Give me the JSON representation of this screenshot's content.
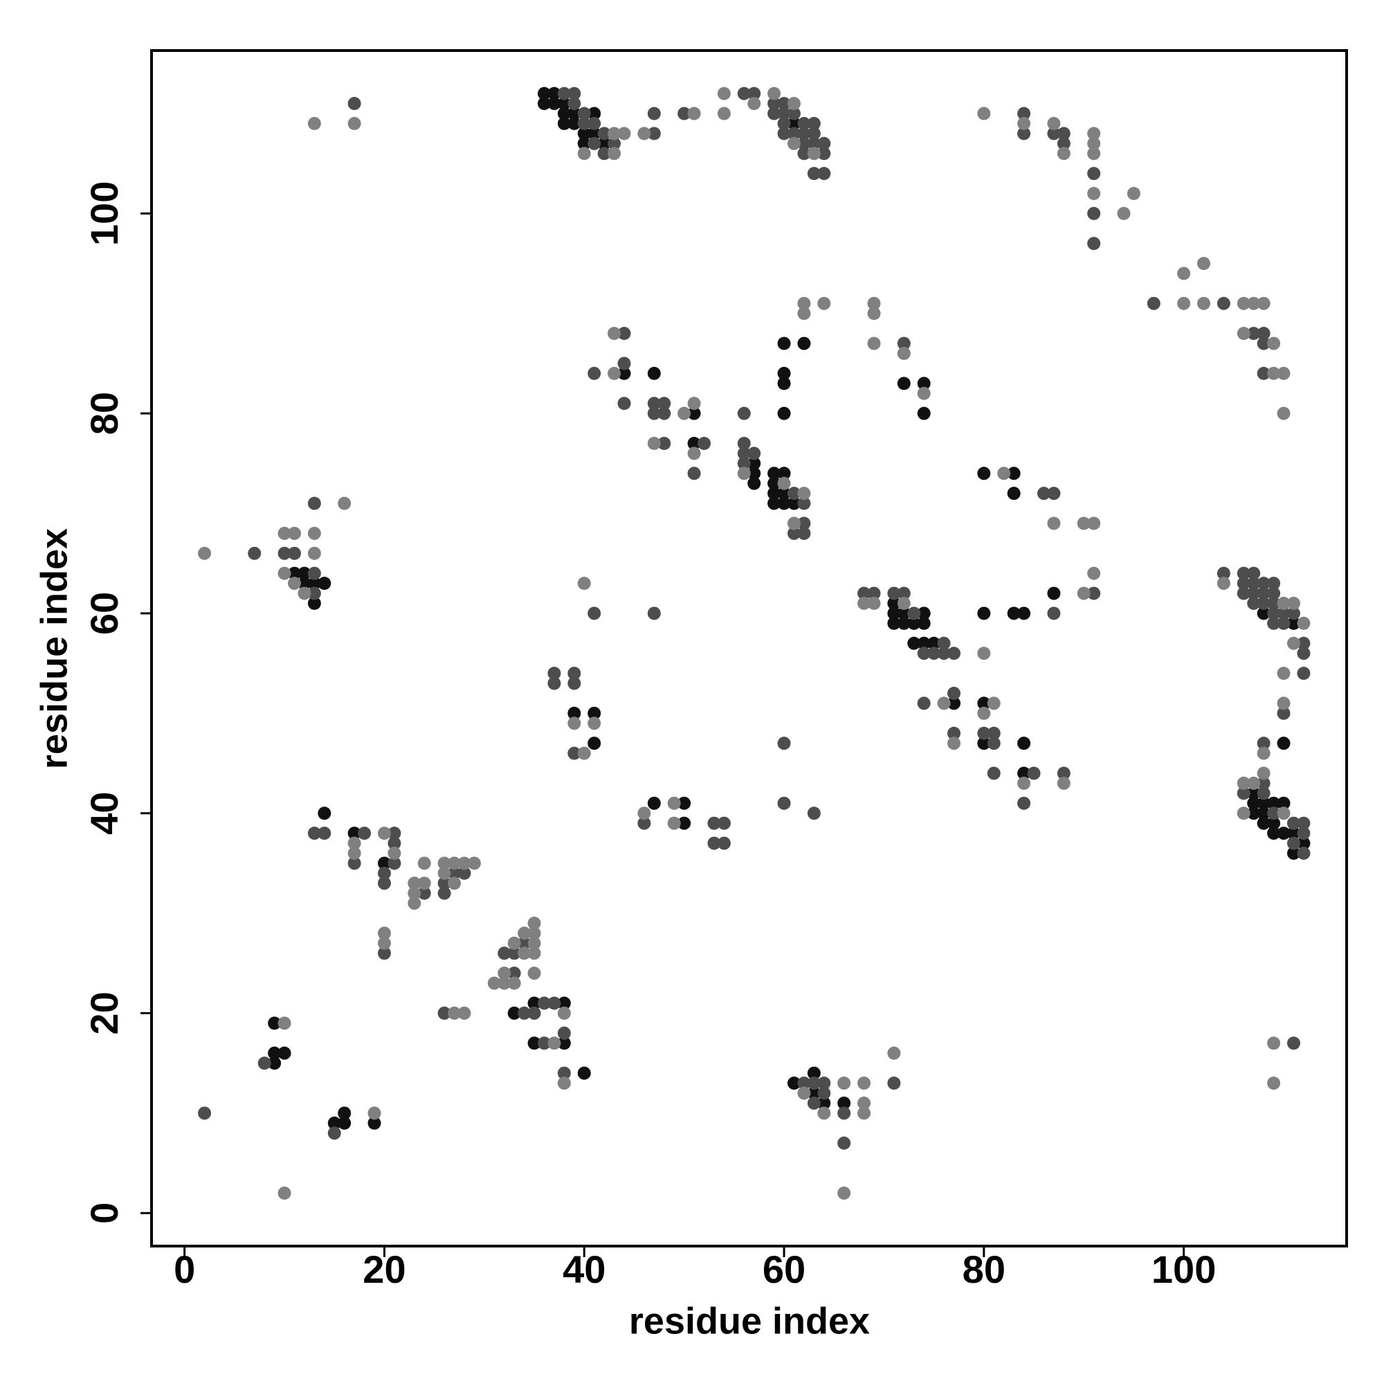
{
  "chart_data": {
    "type": "scatter",
    "xlabel": "residue index",
    "ylabel": "residue index",
    "xlim": [
      -3.3,
      116.3
    ],
    "ylim": [
      -3.3,
      116.3
    ],
    "xticks": [
      0,
      20,
      40,
      60,
      80,
      100
    ],
    "yticks": [
      0,
      20,
      40,
      60,
      80,
      100
    ],
    "grid": false,
    "series": [
      {
        "color": "#111111",
        "x": [
          36,
          37,
          36,
          37,
          38,
          38,
          39,
          41,
          38,
          39,
          40,
          41,
          40,
          42,
          61,
          44,
          47,
          51,
          51,
          57,
          57,
          57,
          59,
          60,
          59,
          59,
          60,
          59,
          60,
          61,
          60,
          62,
          60,
          60,
          60,
          72,
          74,
          74,
          80,
          83,
          83,
          11,
          12,
          12,
          13,
          14,
          13,
          71,
          71,
          72,
          74,
          71,
          72,
          73,
          74,
          73,
          74,
          75,
          80,
          83,
          84,
          87,
          77,
          80,
          80,
          84,
          84,
          108,
          111,
          110,
          107,
          107,
          108,
          109,
          110,
          107,
          108,
          108,
          109,
          109,
          110,
          111,
          112,
          111,
          39,
          41,
          41,
          47,
          50,
          50,
          14,
          17,
          20,
          33,
          35,
          38,
          35,
          38,
          40,
          9,
          9,
          10,
          9,
          15,
          16,
          16,
          19,
          61,
          63,
          63,
          64,
          66
        ],
        "values": [
          112,
          112,
          111,
          111,
          111,
          110,
          110,
          110,
          109,
          109,
          108,
          108,
          107,
          107,
          109,
          84,
          84,
          80,
          77,
          75,
          74,
          73,
          74,
          74,
          73,
          72,
          72,
          71,
          71,
          71,
          87,
          87,
          84,
          83,
          80,
          83,
          83,
          80,
          74,
          74,
          72,
          64,
          64,
          63,
          63,
          63,
          61,
          61,
          60,
          60,
          60,
          59,
          59,
          59,
          59,
          57,
          57,
          57,
          60,
          60,
          60,
          62,
          51,
          51,
          47,
          47,
          44,
          60,
          59,
          47,
          42,
          41,
          41,
          41,
          41,
          40,
          40,
          39,
          39,
          38,
          38,
          38,
          37,
          36,
          50,
          50,
          47,
          41,
          41,
          39,
          40,
          38,
          35,
          20,
          21,
          21,
          17,
          17,
          14,
          19,
          16,
          16,
          15,
          9,
          10,
          9,
          9,
          13,
          14,
          12,
          11,
          11
        ]
      },
      {
        "color": "#4d4d4d",
        "x": [
          38,
          39,
          39,
          40,
          40,
          41,
          42,
          41,
          43,
          42,
          17,
          47,
          47,
          50,
          56,
          57,
          59,
          60,
          59,
          60,
          61,
          60,
          62,
          63,
          60,
          61,
          62,
          63,
          62,
          63,
          64,
          62,
          64,
          63,
          64,
          84,
          84,
          87,
          88,
          88,
          91,
          91,
          91,
          97,
          104,
          107,
          108,
          108,
          108,
          41,
          44,
          44,
          44,
          47,
          48,
          47,
          48,
          48,
          52,
          51,
          56,
          56,
          56,
          57,
          56,
          61,
          62,
          62,
          61,
          62,
          72,
          86,
          87,
          91,
          7,
          13,
          10,
          11,
          13,
          13,
          41,
          47,
          68,
          69,
          71,
          72,
          73,
          76,
          74,
          75,
          76,
          77,
          87,
          74,
          77,
          77,
          80,
          81,
          81,
          81,
          85,
          84,
          88,
          104,
          106,
          107,
          108,
          109,
          106,
          107,
          106,
          107,
          108,
          109,
          107,
          108,
          109,
          109,
          110,
          111,
          109,
          110,
          112,
          112,
          112,
          110,
          108,
          108,
          106,
          108,
          109,
          111,
          112,
          112,
          111,
          112,
          37,
          39,
          37,
          39,
          39,
          60,
          60,
          63,
          46,
          53,
          54,
          53,
          54,
          13,
          14,
          18,
          17,
          21,
          21,
          21,
          20,
          20,
          24,
          27,
          28,
          26,
          26,
          20,
          34,
          32,
          33,
          33,
          26,
          34,
          36,
          37,
          35,
          38,
          36,
          38,
          8,
          2,
          15,
          62,
          63,
          64,
          64,
          63,
          66,
          71,
          66,
          111
        ],
        "values": [
          112,
          112,
          111,
          110,
          109,
          109,
          108,
          107,
          107,
          106,
          111,
          108,
          110,
          110,
          112,
          112,
          111,
          111,
          110,
          110,
          110,
          109,
          109,
          109,
          108,
          108,
          108,
          108,
          107,
          107,
          107,
          106,
          106,
          104,
          104,
          110,
          108,
          108,
          108,
          107,
          104,
          100,
          97,
          91,
          91,
          88,
          88,
          87,
          84,
          84,
          88,
          85,
          81,
          81,
          81,
          80,
          80,
          77,
          77,
          74,
          80,
          77,
          76,
          76,
          75,
          72,
          71,
          69,
          68,
          68,
          87,
          72,
          72,
          62,
          66,
          71,
          66,
          66,
          64,
          62,
          60,
          60,
          62,
          62,
          62,
          62,
          60,
          57,
          56,
          56,
          56,
          56,
          60,
          51,
          52,
          48,
          48,
          48,
          47,
          44,
          44,
          41,
          44,
          64,
          64,
          64,
          63,
          63,
          63,
          63,
          62,
          62,
          62,
          62,
          61,
          61,
          61,
          60,
          60,
          60,
          59,
          59,
          57,
          56,
          54,
          50,
          47,
          43,
          42,
          42,
          40,
          39,
          39,
          38,
          37,
          36,
          54,
          54,
          53,
          53,
          46,
          47,
          41,
          40,
          39,
          39,
          39,
          37,
          37,
          38,
          38,
          38,
          35,
          38,
          37,
          35,
          34,
          33,
          32,
          34,
          34,
          33,
          32,
          26,
          27,
          26,
          26,
          24,
          20,
          20,
          21,
          21,
          20,
          18,
          17,
          14,
          15,
          10,
          8,
          13,
          13,
          13,
          12,
          11,
          10,
          13,
          7,
          17
        ]
      },
      {
        "color": "#808080",
        "x": [
          13,
          17,
          43,
          44,
          40,
          43,
          46,
          51,
          54,
          54,
          57,
          59,
          61,
          61,
          63,
          80,
          84,
          87,
          88,
          91,
          91,
          91,
          91,
          94,
          95,
          100,
          100,
          102,
          102,
          106,
          107,
          108,
          106,
          109,
          109,
          110,
          110,
          43,
          43,
          47,
          50,
          51,
          51,
          56,
          60,
          62,
          61,
          62,
          62,
          64,
          69,
          69,
          69,
          72,
          74,
          82,
          87,
          90,
          91,
          91,
          90,
          2,
          10,
          11,
          13,
          16,
          13,
          10,
          11,
          12,
          40,
          68,
          69,
          72,
          80,
          76,
          77,
          81,
          80,
          84,
          88,
          104,
          110,
          111,
          112,
          111,
          110,
          110,
          108,
          108,
          106,
          107,
          106,
          110,
          39,
          41,
          40,
          46,
          49,
          49,
          17,
          17,
          20,
          21,
          24,
          23,
          24,
          23,
          23,
          26,
          27,
          28,
          29,
          26,
          27,
          20,
          20,
          35,
          34,
          35,
          33,
          35,
          34,
          35,
          32,
          35,
          31,
          32,
          33,
          27,
          28,
          38,
          37,
          38,
          10,
          19,
          10,
          62,
          64,
          66,
          68,
          68,
          68,
          71,
          66,
          109,
          109
        ],
        "values": [
          109,
          109,
          108,
          108,
          106,
          106,
          108,
          110,
          112,
          110,
          111,
          112,
          111,
          107,
          106,
          110,
          109,
          109,
          106,
          108,
          107,
          106,
          102,
          100,
          102,
          94,
          91,
          95,
          91,
          91,
          91,
          91,
          88,
          87,
          84,
          84,
          80,
          88,
          84,
          77,
          80,
          81,
          76,
          74,
          73,
          72,
          69,
          91,
          90,
          91,
          91,
          90,
          87,
          86,
          82,
          74,
          69,
          69,
          69,
          64,
          62,
          66,
          68,
          68,
          68,
          71,
          66,
          64,
          63,
          62,
          63,
          61,
          61,
          61,
          56,
          51,
          47,
          51,
          50,
          43,
          43,
          63,
          61,
          61,
          59,
          57,
          54,
          51,
          46,
          44,
          43,
          43,
          40,
          40,
          49,
          49,
          46,
          40,
          41,
          39,
          37,
          36,
          38,
          36,
          35,
          33,
          33,
          32,
          31,
          35,
          35,
          35,
          35,
          34,
          33,
          28,
          27,
          29,
          28,
          28,
          27,
          27,
          26,
          26,
          24,
          24,
          23,
          23,
          23,
          20,
          20,
          20,
          17,
          13,
          19,
          10,
          2,
          12,
          10,
          13,
          13,
          11,
          10,
          16,
          2,
          17,
          13
        ]
      }
    ]
  }
}
